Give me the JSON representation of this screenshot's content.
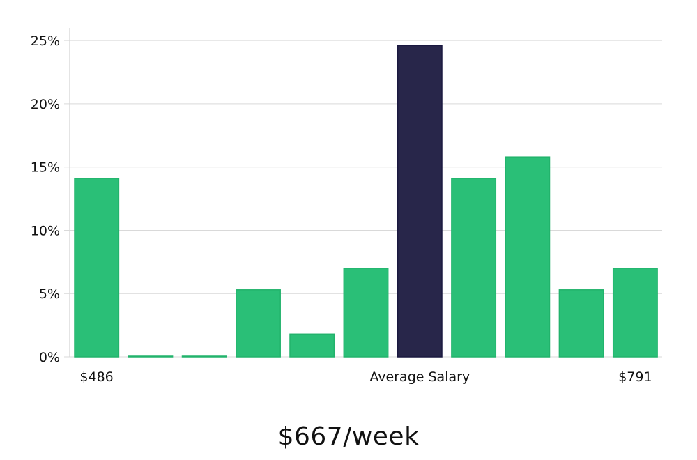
{
  "chart_data": {
    "type": "bar",
    "categories": [
      "$486",
      "",
      "",
      "",
      "",
      "",
      "Average Salary",
      "",
      "",
      "",
      "$791"
    ],
    "values": [
      14.1,
      0,
      0,
      5.3,
      1.8,
      7.0,
      24.6,
      14.1,
      15.8,
      5.3,
      7.0
    ],
    "highlight_index": 6,
    "ylim": [
      0,
      26
    ],
    "yticks": [
      0,
      5,
      10,
      15,
      20,
      25
    ],
    "ytick_labels": [
      "0%",
      "5%",
      "10%",
      "15%",
      "20%",
      "25%"
    ],
    "grid": true,
    "colors": {
      "bar": "#2abf77",
      "bar_edge": "#22b36c",
      "highlight": "#28264a",
      "highlight_edge": "#1a1840",
      "grid": "#d9d9d9",
      "axis": "#c8c8c8"
    }
  },
  "salary_label": "$667/week"
}
